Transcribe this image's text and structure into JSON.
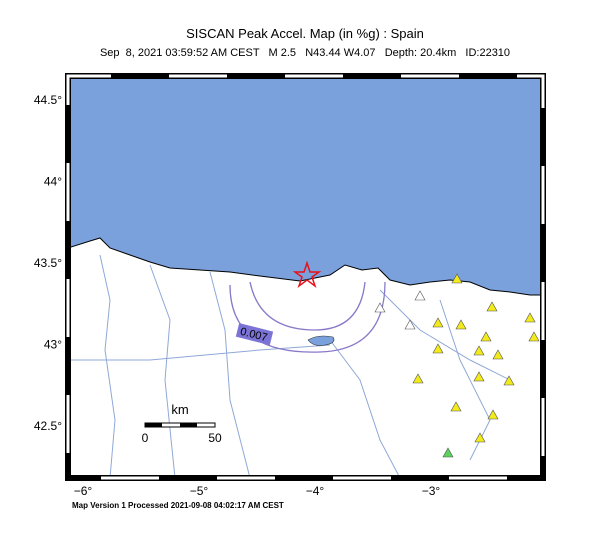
{
  "header": {
    "title": "SISCAN Peak Accel. Map (in %g) : Spain",
    "subtitle": "Sep  8, 2021 03:59:52 AM CEST   M 2.5   N43.44 W4.07   Depth: 20.4km   ID:22310"
  },
  "map": {
    "lat_labels": [
      "44.5°",
      "44°",
      "43.5°",
      "43°",
      "42.5°"
    ],
    "lon_labels": [
      "−6°",
      "−5°",
      "−4°",
      "−3°"
    ],
    "contour_label": "0.007",
    "scale": {
      "unit": "km",
      "start": "0",
      "end": "50"
    }
  },
  "footer": "Map Version 1 Processed 2021-09-08 04:02:17 AM CEST"
}
